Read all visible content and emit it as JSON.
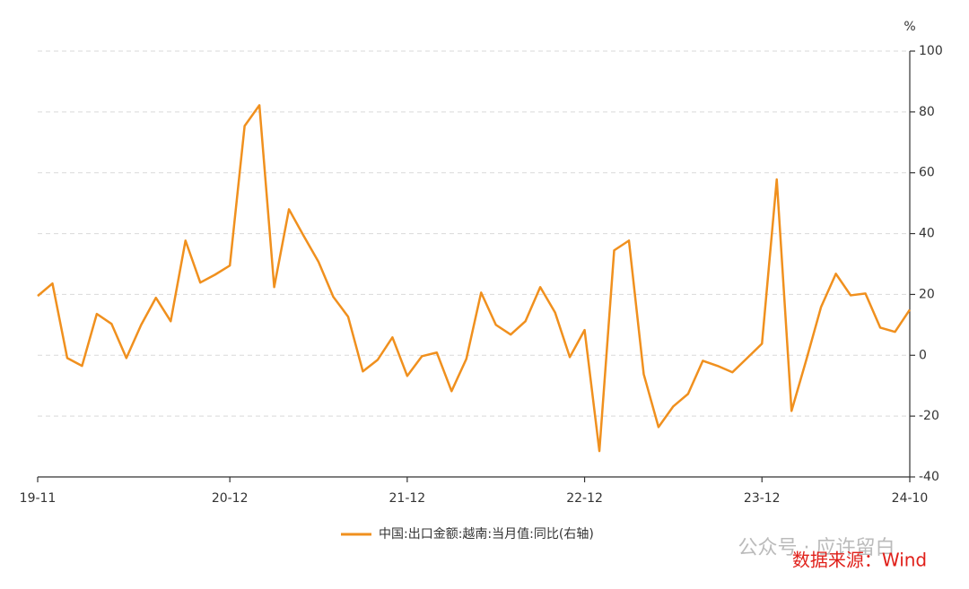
{
  "chart_data": {
    "type": "line",
    "y_axis_label": "%",
    "categories": [
      "19-11",
      null,
      null,
      null,
      null,
      null,
      null,
      null,
      null,
      null,
      null,
      null,
      null,
      "20-12",
      null,
      null,
      null,
      null,
      null,
      null,
      null,
      null,
      null,
      null,
      null,
      "21-12",
      null,
      null,
      null,
      null,
      null,
      null,
      null,
      null,
      null,
      null,
      null,
      "22-12",
      null,
      null,
      null,
      null,
      null,
      null,
      null,
      null,
      null,
      null,
      null,
      "23-12",
      null,
      null,
      null,
      null,
      null,
      null,
      null,
      null,
      null,
      "24-10"
    ],
    "series": [
      {
        "name": "中国:出口金额:越南:当月值:同比(右轴)",
        "color": "#f0901e",
        "values": [
          19.5,
          23.6,
          -0.9,
          -3.5,
          13.6,
          10.3,
          -0.9,
          10,
          18.9,
          11.2,
          37.7,
          23.9,
          26.5,
          29.5,
          75.4,
          82.2,
          22.4,
          48,
          39.2,
          30.7,
          19.2,
          12.7,
          -5.3,
          -1.5,
          5.9,
          -6.8,
          -0.3,
          0.9,
          -11.8,
          -1.2,
          20.6,
          10,
          6.8,
          11.2,
          22.4,
          14.1,
          -0.6,
          8.3,
          -31.5,
          34.5,
          37.7,
          -6.2,
          -23.6,
          -16.8,
          -12.7,
          -1.8,
          -3.5,
          -5.6,
          -0.9,
          3.8,
          57.8,
          -18.3,
          -1.5,
          15.9,
          26.8,
          19.7,
          20.3,
          9.1,
          7.7,
          15
        ]
      }
    ],
    "ylim": [
      -40,
      100
    ],
    "yticks": [
      -40,
      -20,
      0,
      20,
      40,
      60,
      80,
      100
    ],
    "y_axis_side": "right",
    "grid": true,
    "legend": "bottom",
    "annotations": [
      "公众号 · 应许留白",
      "数据来源：Wind"
    ]
  }
}
